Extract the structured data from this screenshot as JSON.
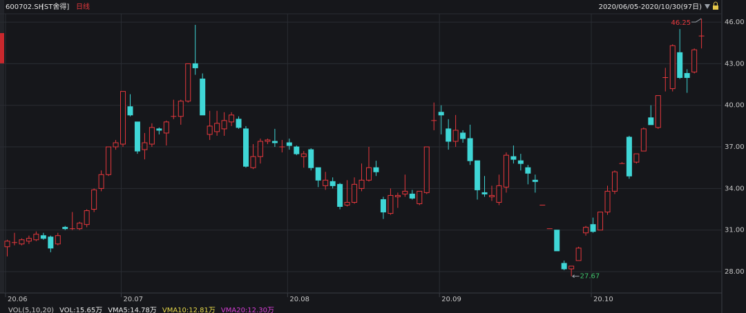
{
  "header": {
    "symbol": "600702.SH",
    "name": "[ST舍得]",
    "period": "日线",
    "range": "2020/06/05-2020/10/30(97日)"
  },
  "chart_data": {
    "type": "candlestick",
    "categories": [
      "20.06",
      null,
      null,
      null,
      null,
      null,
      null,
      null,
      null,
      null,
      null,
      null,
      null,
      null,
      null,
      null,
      "20.07",
      null,
      null,
      null,
      null,
      null,
      null,
      null,
      null,
      null,
      null,
      null,
      null,
      null,
      null,
      null,
      null,
      null,
      null,
      null,
      null,
      null,
      null,
      "20.08",
      null,
      null,
      null,
      null,
      null,
      null,
      null,
      null,
      null,
      null,
      null,
      null,
      null,
      null,
      null,
      null,
      null,
      null,
      null,
      null,
      "20.09",
      null,
      null,
      null,
      null,
      null,
      null,
      null,
      null,
      null,
      null,
      null,
      null,
      null,
      null,
      null,
      null,
      null,
      null,
      null,
      null,
      "20.10",
      null,
      null,
      null,
      null,
      null,
      null,
      null,
      null,
      null,
      null,
      null,
      null,
      null,
      null,
      null
    ],
    "open": [
      29.8,
      30.1,
      30.0,
      30.2,
      30.3,
      30.6,
      30.5,
      30.0,
      31.2,
      31.1,
      31.1,
      31.4,
      32.5,
      34.0,
      35.0,
      37.0,
      37.2,
      39.9,
      38.8,
      36.8,
      37.2,
      38.3,
      38.0,
      39.2,
      39.2,
      40.3,
      43.0,
      41.9,
      37.9,
      38.1,
      38.3,
      38.8,
      39.0,
      38.3,
      35.5,
      36.3,
      37.4,
      37.4,
      37.0,
      37.3,
      37.0,
      36.3,
      36.8,
      35.5,
      34.2,
      34.5,
      34.3,
      32.8,
      33.0,
      34.0,
      34.6,
      35.5,
      33.2,
      32.2,
      33.4,
      33.6,
      33.6,
      32.9,
      33.7,
      38.9,
      39.5,
      38.3,
      37.4,
      38.0,
      37.6,
      36.0,
      33.7,
      33.4,
      33.0,
      34.1,
      36.3,
      36.0,
      35.5,
      34.6,
      32.8,
      31.1,
      31.0,
      28.6,
      28.2,
      28.8,
      30.8,
      31.4,
      31.0,
      32.3,
      33.8,
      35.8,
      37.7,
      35.9,
      36.7,
      39.1,
      38.4,
      42.0,
      41.2,
      43.8,
      42.3,
      42.4,
      45.0
    ],
    "high": [
      30.3,
      30.8,
      30.4,
      30.6,
      30.9,
      30.8,
      30.6,
      30.8,
      31.3,
      32.3,
      31.6,
      32.5,
      34.0,
      35.3,
      37.0,
      37.5,
      41.0,
      40.8,
      38.8,
      38.0,
      38.7,
      38.4,
      38.9,
      40.4,
      40.4,
      43.0,
      45.8,
      42.3,
      39.6,
      39.6,
      39.5,
      39.5,
      39.2,
      38.5,
      37.2,
      37.6,
      37.6,
      38.3,
      37.5,
      37.6,
      37.1,
      36.7,
      36.9,
      35.5,
      35.2,
      34.8,
      34.4,
      34.6,
      34.8,
      35.8,
      37.0,
      36.0,
      33.4,
      34.0,
      33.7,
      35.0,
      33.9,
      33.8,
      37.0,
      40.2,
      40.0,
      39.0,
      39.3,
      38.2,
      38.6,
      36.0,
      34.9,
      34.2,
      35.0,
      36.6,
      37.1,
      36.5,
      35.7,
      35.0,
      32.8,
      31.1,
      31.0,
      28.8,
      28.4,
      29.8,
      31.3,
      31.9,
      32.3,
      34.2,
      35.3,
      35.9,
      37.8,
      36.5,
      38.4,
      40.0,
      40.7,
      42.7,
      44.4,
      45.5,
      42.6,
      44.1,
      46.25
    ],
    "low": [
      29.1,
      29.9,
      29.9,
      30.0,
      30.2,
      30.3,
      29.4,
      29.9,
      31.0,
      31.0,
      31.0,
      31.2,
      32.3,
      33.8,
      34.9,
      36.8,
      37.0,
      39.2,
      36.5,
      36.1,
      37.0,
      37.9,
      37.1,
      39.0,
      38.6,
      40.2,
      42.2,
      39.3,
      37.5,
      37.8,
      37.8,
      38.5,
      38.3,
      35.5,
      35.4,
      35.8,
      37.2,
      37.0,
      36.6,
      36.8,
      36.4,
      35.5,
      35.3,
      34.1,
      33.9,
      34.0,
      32.5,
      32.7,
      32.9,
      33.8,
      34.5,
      34.9,
      31.8,
      32.1,
      32.6,
      33.4,
      33.2,
      32.8,
      33.6,
      38.2,
      37.9,
      36.8,
      37.0,
      37.3,
      35.7,
      33.2,
      33.4,
      33.1,
      32.8,
      33.7,
      35.8,
      35.3,
      34.3,
      33.7,
      32.8,
      31.1,
      29.5,
      28.1,
      27.67,
      28.8,
      30.6,
      30.8,
      31.0,
      32.1,
      33.6,
      35.8,
      34.7,
      35.8,
      36.7,
      38.6,
      38.3,
      41.0,
      41.0,
      41.9,
      40.9,
      42.3,
      44.1
    ],
    "close": [
      30.2,
      30.1,
      30.3,
      30.4,
      30.7,
      30.4,
      29.7,
      30.6,
      31.1,
      31.1,
      31.5,
      32.4,
      33.9,
      35.0,
      37.0,
      37.3,
      41.0,
      39.3,
      36.7,
      37.3,
      38.4,
      38.2,
      38.8,
      39.2,
      40.3,
      43.0,
      42.7,
      39.3,
      38.5,
      38.7,
      38.9,
      39.3,
      38.4,
      35.6,
      36.3,
      37.4,
      37.5,
      37.3,
      37.0,
      37.1,
      36.5,
      36.5,
      35.5,
      34.6,
      34.6,
      34.2,
      32.7,
      33.0,
      34.3,
      34.6,
      35.5,
      35.2,
      32.3,
      33.5,
      33.5,
      33.8,
      33.3,
      33.8,
      37.0,
      38.9,
      39.3,
      37.4,
      38.2,
      37.6,
      36.0,
      33.9,
      33.6,
      33.5,
      34.2,
      36.4,
      36.1,
      35.8,
      35.1,
      34.5,
      32.8,
      31.1,
      29.5,
      28.2,
      28.4,
      29.7,
      31.2,
      30.9,
      32.3,
      33.8,
      35.2,
      35.8,
      34.9,
      36.5,
      38.3,
      38.6,
      40.7,
      42.0,
      44.3,
      42.0,
      42.0,
      44.0,
      45.0
    ],
    "up_color": "#e8383d",
    "down_color": "#3fd6d6",
    "ylim": [
      26.46,
      46.6
    ],
    "yticks": [
      {
        "value": 28,
        "label": "28.00"
      },
      {
        "value": 31,
        "label": "31.00"
      },
      {
        "value": 34,
        "label": "34.00"
      },
      {
        "value": 37,
        "label": "37.00"
      },
      {
        "value": 40,
        "label": "40.00"
      },
      {
        "value": 43,
        "label": "43.00"
      },
      {
        "value": 46,
        "label": "46.00"
      }
    ],
    "grid": true,
    "max_label": 46.25,
    "min_label": 27.67,
    "volume_legend": [
      {
        "text": "VOL(5,10,20)",
        "color": "#c8c8c8"
      },
      {
        "text": "VOL:15.65万",
        "color": "#e8e8e8"
      },
      {
        "text": "VMA5:14.78万",
        "color": "#e8e8e8"
      },
      {
        "text": "VMA10:12.81万",
        "color": "#e6d84a"
      },
      {
        "text": "VMA20:12.30万",
        "color": "#d63fd6"
      }
    ]
  }
}
